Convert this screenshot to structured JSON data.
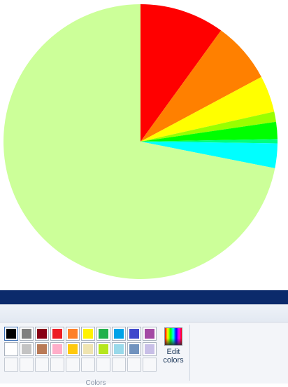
{
  "chart_data": {
    "type": "pie",
    "title": "",
    "start_angle_deg": 0,
    "direction": "clockwise",
    "slices": [
      {
        "value": 10.0,
        "color": "#ff0000"
      },
      {
        "value": 7.2,
        "color": "#ff8000"
      },
      {
        "value": 4.3,
        "color": "#ffff00"
      },
      {
        "value": 1.2,
        "color": "#99ff00"
      },
      {
        "value": 2.0,
        "color": "#00ff00"
      },
      {
        "value": 0.5,
        "color": "#00ff80"
      },
      {
        "value": 2.9,
        "color": "#00ffff"
      },
      {
        "value": 71.9,
        "color": "#ccff99"
      }
    ]
  },
  "ribbon": {
    "colors_group": {
      "label": "Colors",
      "edit_colors_label": "Edit colors",
      "palette": [
        [
          "#000000",
          "#7f7f7f",
          "#880015",
          "#ed1c24",
          "#ff7f27",
          "#fff200",
          "#22b14c",
          "#00a2e8",
          "#3f48cc",
          "#a349a4"
        ],
        [
          "#ffffff",
          "#c3c3c3",
          "#b97a57",
          "#ffaec9",
          "#ffc90e",
          "#efe4b0",
          "#b5e61d",
          "#99d9ea",
          "#7092be",
          "#c8bfe7"
        ],
        [
          "",
          "",
          "",
          "",
          "",
          "",
          "",
          "",
          "",
          ""
        ]
      ]
    }
  }
}
